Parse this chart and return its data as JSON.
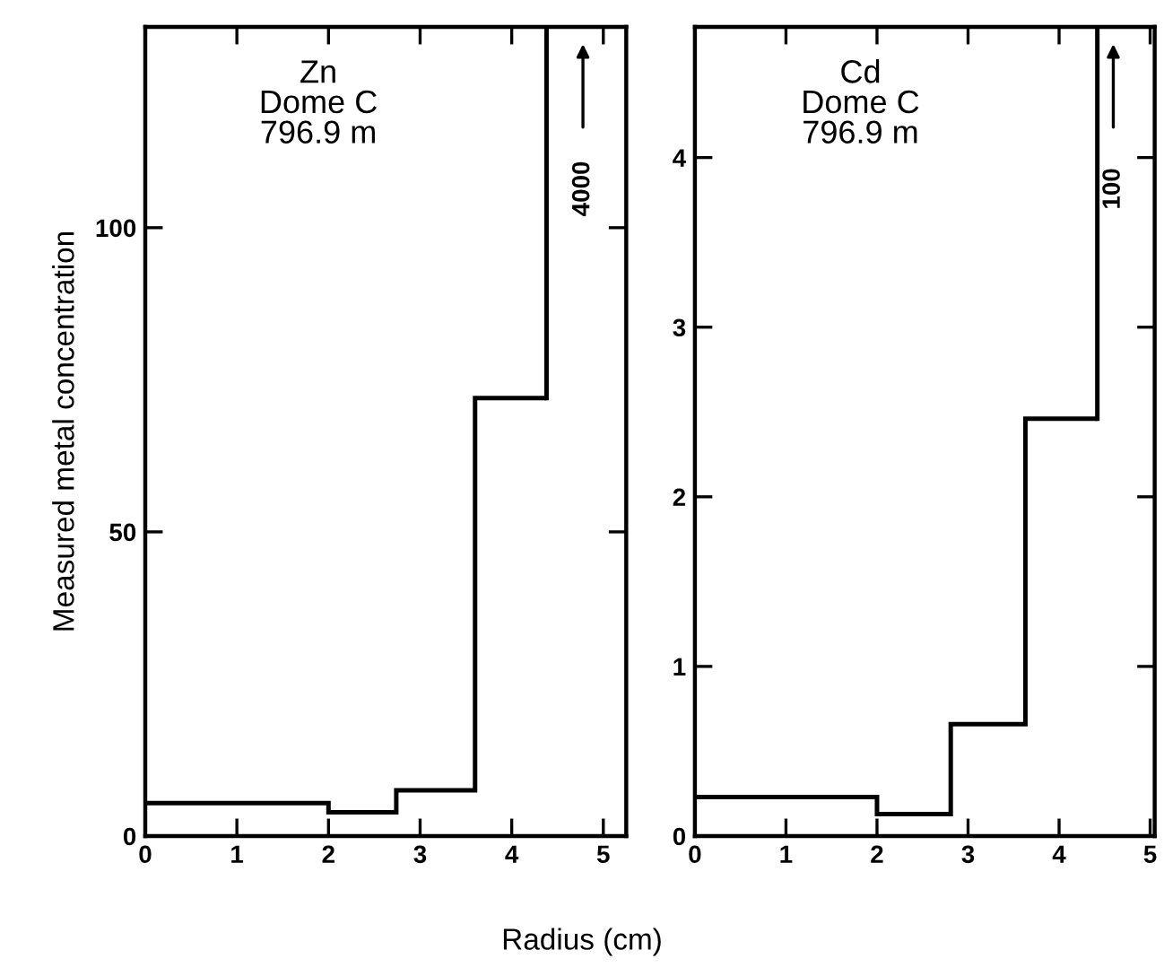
{
  "chart_data": [
    {
      "type": "histogram",
      "ylabel": "Measured metal concentration",
      "xlabel": "Radius (cm)",
      "bins": [
        0,
        2,
        2.74,
        3.6,
        4.38
      ],
      "values": [
        5.4,
        3.9,
        7.5,
        72
      ],
      "ref_lines": [
        {
          "axis": "x",
          "value": 4.38
        }
      ],
      "color": "#000000",
      "xlim": [
        0,
        5.25
      ],
      "xticks": [
        0,
        1,
        2,
        3,
        4,
        5
      ],
      "ylim": [
        0,
        133
      ],
      "yticks": [
        0,
        50,
        100
      ],
      "annotations": [
        "Zn\nDome C\n796.9 m",
        "4000"
      ]
    },
    {
      "type": "histogram",
      "bins": [
        0,
        2,
        2.81,
        3.63,
        4.42
      ],
      "values": [
        0.23,
        0.13,
        0.66,
        2.46
      ],
      "ref_lines": [
        {
          "axis": "x",
          "value": 4.42
        }
      ],
      "color": "#000000",
      "xlim": [
        0,
        5.05
      ],
      "xticks": [
        0,
        1,
        2,
        3,
        4,
        5
      ],
      "ylim": [
        0,
        4.77
      ],
      "yticks": [
        0,
        1,
        2,
        3,
        4
      ],
      "annotations": [
        "Cd\nDome C\n796.9 m",
        "100"
      ]
    }
  ]
}
